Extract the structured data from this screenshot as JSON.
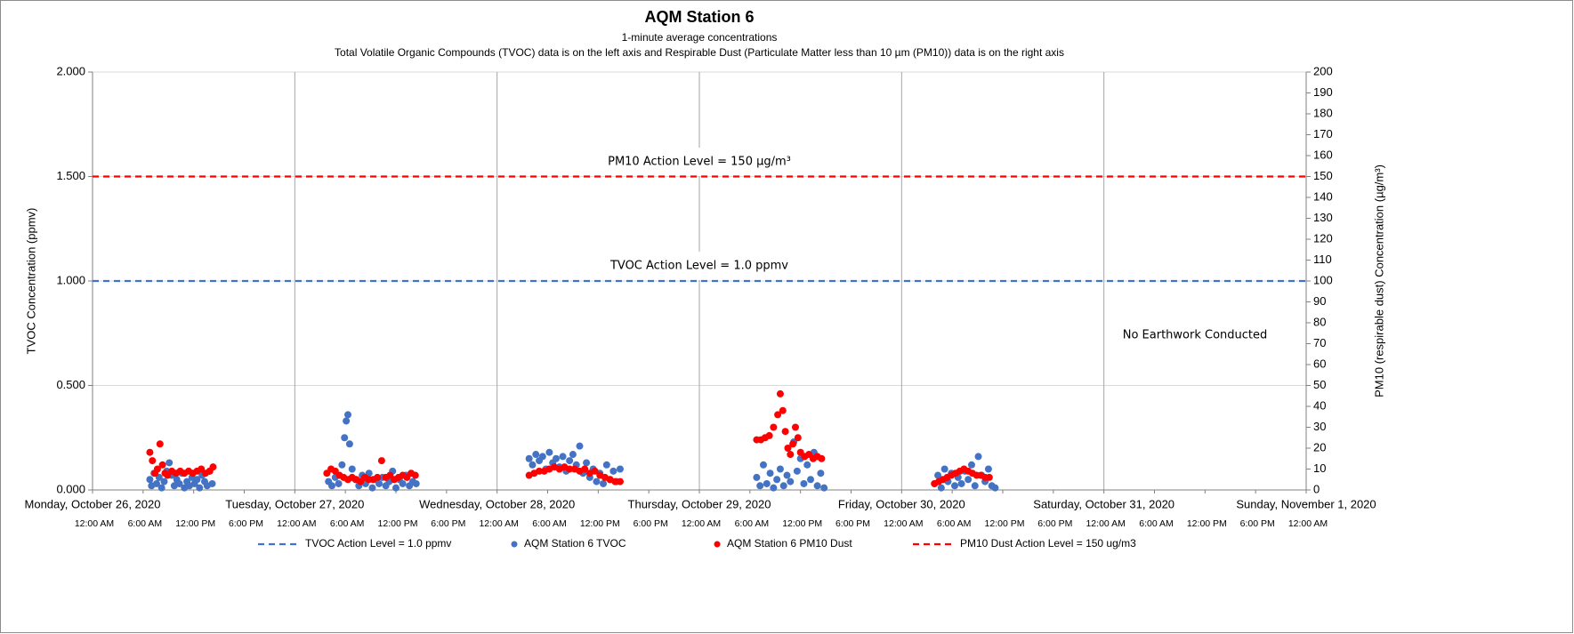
{
  "chart_data": {
    "type": "scatter",
    "title": "AQM Station 6",
    "subtitle": "1-minute average concentrations",
    "description": "Total Volatile Organic Compounds (TVOC) data is on the left axis and Respirable Dust (Particulate Matter less than 10 µm (PM10)) data is on the right axis",
    "y_label": "TVOC Concentration (ppmv)",
    "y2_label": "PM10 (respirable dust) Concentration (µg/m³)",
    "annotations": [
      "PM10 Action Level = 150 µg/m³",
      "TVOC Action Level = 1.0 ppmv",
      "No Earthwork Conducted"
    ],
    "xlim": [
      0,
      144
    ],
    "day_ticks": [
      {
        "value": 0,
        "label": "Monday, October 26, 2020"
      },
      {
        "value": 24,
        "label": "Tuesday, October 27, 2020"
      },
      {
        "value": 48,
        "label": "Wednesday, October 28, 2020"
      },
      {
        "value": 72,
        "label": "Thursday, October 29, 2020"
      },
      {
        "value": 96,
        "label": "Friday, October 30, 2020"
      },
      {
        "value": 120,
        "label": "Saturday, October 31, 2020"
      },
      {
        "value": 144,
        "label": "Sunday, November 1, 2020"
      }
    ],
    "xticks": [
      {
        "value": 0,
        "label": "12:00 AM"
      },
      {
        "value": 6,
        "label": "6:00 AM"
      },
      {
        "value": 12,
        "label": "12:00 PM"
      },
      {
        "value": 18,
        "label": "6:00 PM"
      },
      {
        "value": 24,
        "label": "12:00 AM"
      },
      {
        "value": 30,
        "label": "6:00 AM"
      },
      {
        "value": 36,
        "label": "12:00 PM"
      },
      {
        "value": 42,
        "label": "6:00 PM"
      },
      {
        "value": 48,
        "label": "12:00 AM"
      },
      {
        "value": 54,
        "label": "6:00 AM"
      },
      {
        "value": 60,
        "label": "12:00 PM"
      },
      {
        "value": 66,
        "label": "6:00 PM"
      },
      {
        "value": 72,
        "label": "12:00 AM"
      },
      {
        "value": 78,
        "label": "6:00 AM"
      },
      {
        "value": 84,
        "label": "12:00 PM"
      },
      {
        "value": 90,
        "label": "6:00 PM"
      },
      {
        "value": 96,
        "label": "12:00 AM"
      },
      {
        "value": 102,
        "label": "6:00 AM"
      },
      {
        "value": 108,
        "label": "12:00 PM"
      },
      {
        "value": 114,
        "label": "6:00 PM"
      },
      {
        "value": 120,
        "label": "12:00 AM"
      },
      {
        "value": 126,
        "label": "6:00 AM"
      },
      {
        "value": 132,
        "label": "12:00 PM"
      },
      {
        "value": 138,
        "label": "6:00 PM"
      },
      {
        "value": 144,
        "label": "12:00 AM"
      }
    ],
    "ylim": [
      0,
      2
    ],
    "yticks": [
      {
        "value": 0,
        "label": "0.000"
      },
      {
        "value": 0.5,
        "label": "0.500"
      },
      {
        "value": 1,
        "label": "1.000"
      },
      {
        "value": 1.5,
        "label": "1.500"
      },
      {
        "value": 2,
        "label": "2.000"
      }
    ],
    "y2lim": [
      0,
      200
    ],
    "y2ticks": [
      0,
      10,
      20,
      30,
      40,
      50,
      60,
      70,
      80,
      90,
      100,
      110,
      120,
      130,
      140,
      150,
      160,
      170,
      180,
      190,
      200
    ],
    "grid": true,
    "series": [
      {
        "name": "TVOC Action Level = 1.0 ppmv",
        "color": "#4472c4",
        "style": "dashed",
        "x": [
          0,
          144
        ],
        "values": [
          1.0,
          1.0
        ]
      },
      {
        "name": "AQM Station 6 TVOC",
        "color": "#4472c4",
        "style": "marker",
        "x": [
          6.8,
          7.0,
          7.3,
          7.6,
          7.9,
          8.2,
          8.5,
          8.8,
          9.1,
          9.4,
          9.7,
          10.0,
          10.3,
          10.6,
          10.9,
          11.2,
          11.5,
          11.8,
          12.1,
          12.4,
          12.7,
          13.0,
          13.3,
          13.6,
          13.9,
          14.2,
          28.0,
          28.4,
          28.8,
          29.2,
          29.6,
          29.9,
          30.1,
          30.3,
          30.5,
          30.8,
          31.2,
          31.6,
          32.0,
          32.4,
          32.8,
          33.2,
          33.6,
          34.0,
          34.4,
          34.8,
          35.2,
          35.6,
          36.0,
          36.4,
          36.8,
          37.2,
          37.6,
          38.0,
          38.4,
          51.8,
          52.2,
          52.6,
          53.0,
          53.4,
          53.8,
          54.2,
          54.6,
          55.0,
          55.4,
          55.8,
          56.2,
          56.6,
          57.0,
          57.4,
          57.8,
          58.2,
          58.6,
          59.0,
          59.4,
          59.8,
          60.2,
          60.6,
          61.0,
          61.4,
          61.8,
          62.2,
          62.6,
          78.8,
          79.2,
          79.6,
          80.0,
          80.4,
          80.8,
          81.2,
          81.6,
          82.0,
          82.4,
          82.8,
          83.2,
          83.6,
          84.0,
          84.4,
          84.8,
          85.2,
          85.6,
          86.0,
          86.4,
          86.8,
          99.9,
          100.3,
          100.7,
          101.1,
          101.5,
          101.9,
          102.3,
          102.7,
          103.1,
          103.5,
          103.9,
          104.3,
          104.7,
          105.1,
          105.5,
          105.9,
          106.3,
          106.7,
          107.1
        ],
        "values": [
          0.05,
          0.02,
          0.08,
          0.03,
          0.06,
          0.01,
          0.04,
          0.09,
          0.13,
          0.07,
          0.02,
          0.05,
          0.03,
          0.08,
          0.01,
          0.04,
          0.02,
          0.06,
          0.03,
          0.05,
          0.01,
          0.07,
          0.04,
          0.02,
          0.09,
          0.03,
          0.04,
          0.02,
          0.06,
          0.03,
          0.12,
          0.25,
          0.33,
          0.36,
          0.22,
          0.1,
          0.05,
          0.02,
          0.07,
          0.03,
          0.08,
          0.01,
          0.05,
          0.03,
          0.06,
          0.02,
          0.04,
          0.09,
          0.01,
          0.05,
          0.03,
          0.07,
          0.02,
          0.04,
          0.03,
          0.15,
          0.12,
          0.17,
          0.14,
          0.16,
          0.1,
          0.18,
          0.13,
          0.15,
          0.11,
          0.16,
          0.09,
          0.14,
          0.17,
          0.12,
          0.21,
          0.08,
          0.13,
          0.06,
          0.1,
          0.04,
          0.08,
          0.03,
          0.12,
          0.05,
          0.09,
          0.04,
          0.1,
          0.06,
          0.02,
          0.12,
          0.03,
          0.08,
          0.01,
          0.05,
          0.1,
          0.02,
          0.07,
          0.04,
          0.23,
          0.09,
          0.15,
          0.03,
          0.12,
          0.05,
          0.18,
          0.02,
          0.08,
          0.01,
          0.03,
          0.07,
          0.01,
          0.1,
          0.04,
          0.08,
          0.02,
          0.06,
          0.03,
          0.09,
          0.05,
          0.12,
          0.02,
          0.16,
          0.07,
          0.04,
          0.1,
          0.02,
          0.01
        ]
      },
      {
        "name": "AQM Station 6 PM10 Dust",
        "color": "#ff0000",
        "style": "marker",
        "axis": "y2",
        "x": [
          6.8,
          7.1,
          7.4,
          7.7,
          8.0,
          8.3,
          8.6,
          8.9,
          9.4,
          9.9,
          10.4,
          10.9,
          11.4,
          11.9,
          12.4,
          12.9,
          13.4,
          13.9,
          14.3,
          27.8,
          28.3,
          28.8,
          29.3,
          29.8,
          30.3,
          30.8,
          31.3,
          31.8,
          32.3,
          32.8,
          33.3,
          33.8,
          34.3,
          34.8,
          35.3,
          35.8,
          36.3,
          36.8,
          37.3,
          37.8,
          38.3,
          51.8,
          52.4,
          53.0,
          53.6,
          54.2,
          54.8,
          55.4,
          56.0,
          56.6,
          57.2,
          57.8,
          58.4,
          59.0,
          59.6,
          60.2,
          60.8,
          61.4,
          62.0,
          62.6,
          78.8,
          79.3,
          79.8,
          80.3,
          80.8,
          81.3,
          81.6,
          81.9,
          82.2,
          82.5,
          82.8,
          83.1,
          83.4,
          83.7,
          84.0,
          84.5,
          85.0,
          85.5,
          86.0,
          86.5,
          99.9,
          100.4,
          100.9,
          101.4,
          101.9,
          102.4,
          102.9,
          103.4,
          103.9,
          104.4,
          104.9,
          105.4,
          105.9,
          106.4
        ],
        "values": [
          18,
          14,
          8,
          10,
          22,
          12,
          8,
          7,
          9,
          8,
          9,
          8,
          9,
          8,
          9,
          10,
          8,
          9,
          11,
          8,
          10,
          9,
          7,
          6,
          5,
          6,
          5,
          4,
          6,
          5,
          5,
          6,
          14,
          6,
          7,
          5,
          6,
          7,
          6,
          8,
          7,
          7,
          8,
          9,
          9,
          10,
          11,
          10,
          11,
          10,
          10,
          9,
          10,
          8,
          9,
          7,
          6,
          5,
          4,
          4,
          24,
          24,
          25,
          26,
          30,
          36,
          46,
          38,
          28,
          20,
          17,
          22,
          30,
          25,
          18,
          16,
          17,
          15,
          16,
          15,
          3,
          4,
          5,
          6,
          7,
          8,
          9,
          10,
          9,
          8,
          7,
          7,
          6,
          6
        ]
      },
      {
        "name": "PM10 Dust Action Level = 150 ug/m3",
        "color": "#ff0000",
        "style": "dashed",
        "axis": "y2",
        "x": [
          0,
          144
        ],
        "values": [
          150,
          150
        ]
      }
    ]
  }
}
